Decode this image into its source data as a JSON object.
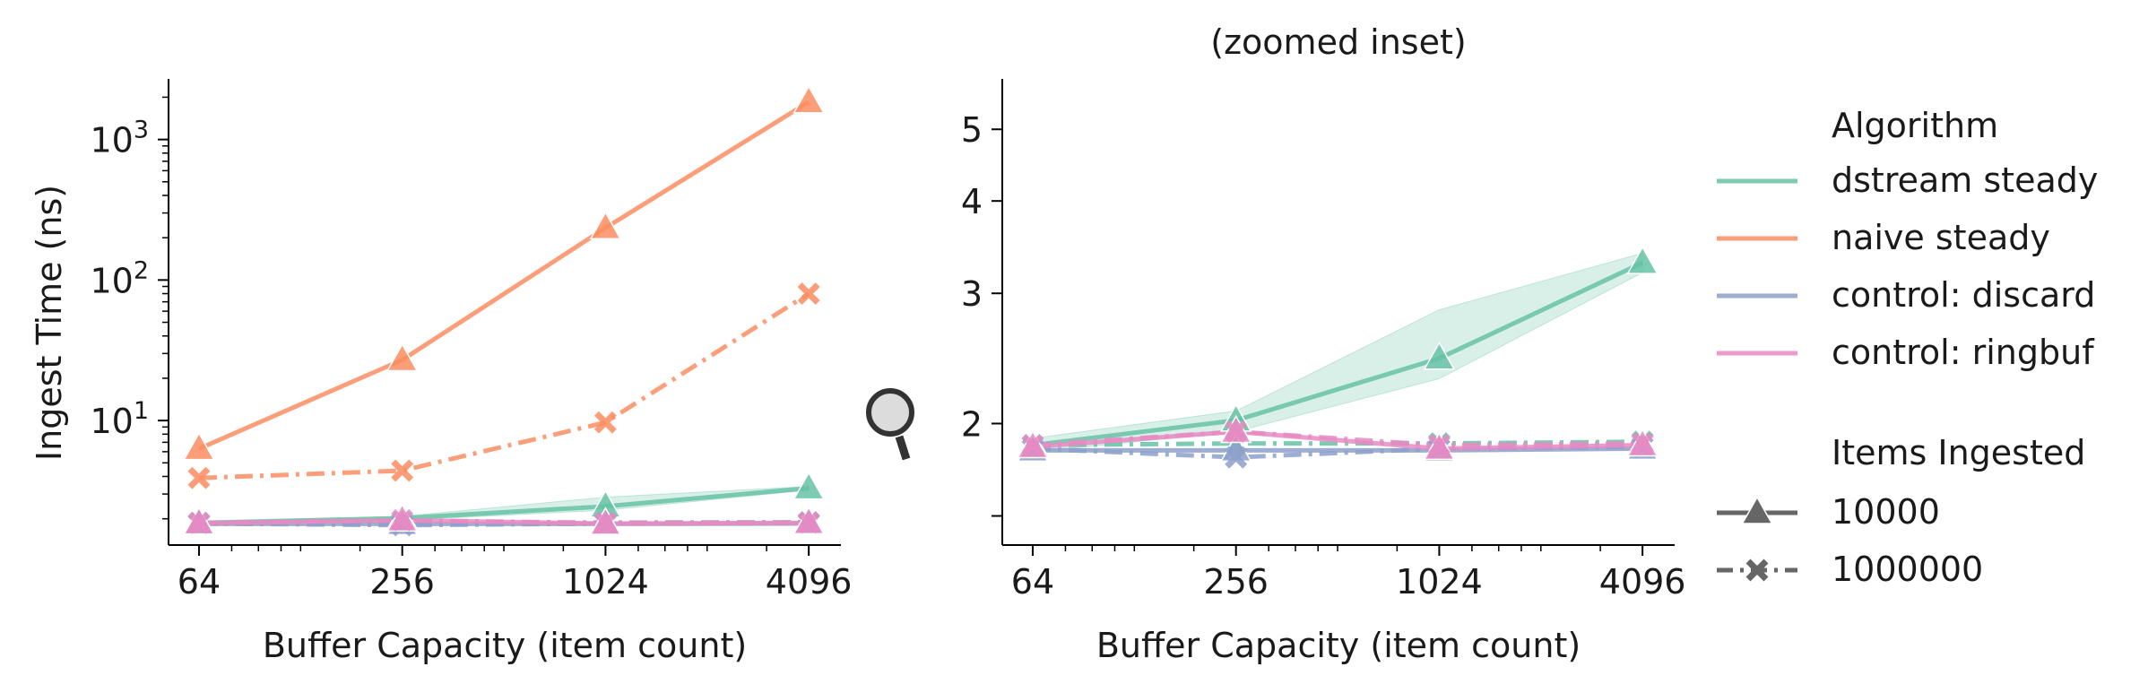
{
  "colors": {
    "dstream steady": "#66c2a5",
    "naive steady": "#fc8d62",
    "control: discard": "#8da0cb",
    "control: ringbuf": "#e78ac3",
    "axis": "#000000",
    "legend_marker": "#666666"
  },
  "icons": {
    "zoom": "magnifier-icon"
  },
  "legend": {
    "algorithm_title": "Algorithm",
    "algorithms": [
      "dstream steady",
      "naive steady",
      "control: discard",
      "control: ringbuf"
    ],
    "items_title": "Items Ingested",
    "items": [
      {
        "label": "10000",
        "marker": "triangle",
        "dash": "solid"
      },
      {
        "label": "1000000",
        "marker": "x",
        "dash": "dashed"
      }
    ]
  },
  "chart_data": [
    {
      "type": "line",
      "title": "",
      "xlabel": "Buffer Capacity (item count)",
      "ylabel": "Ingest Time (ns)",
      "xscale": "log2",
      "yscale": "log10",
      "x": [
        64,
        256,
        1024,
        4096
      ],
      "xticks": [
        "64",
        "256",
        "1024",
        "4096"
      ],
      "yticks": [
        {
          "value": 10,
          "base": "10",
          "exp": "1"
        },
        {
          "value": 100,
          "base": "10",
          "exp": "2"
        },
        {
          "value": 1000,
          "base": "10",
          "exp": "3"
        }
      ],
      "xlim": [
        52,
        5100
      ],
      "ylim": [
        1.3,
        2700
      ],
      "grid": false,
      "series": [
        {
          "name": "dstream steady",
          "items": "10000",
          "values": [
            1.87,
            2.02,
            2.45,
            3.3
          ],
          "band": [
            [
              1.83,
              1.91
            ],
            [
              1.95,
              2.08
            ],
            [
              2.3,
              2.85
            ],
            [
              3.2,
              3.4
            ]
          ]
        },
        {
          "name": "dstream steady",
          "items": "1000000",
          "values": [
            1.87,
            1.88,
            1.88,
            1.89
          ]
        },
        {
          "name": "naive steady",
          "items": "10000",
          "values": [
            6.3,
            27,
            235,
            1850
          ]
        },
        {
          "name": "naive steady",
          "items": "1000000",
          "values": [
            3.9,
            4.4,
            9.7,
            80
          ]
        },
        {
          "name": "control: discard",
          "items": "10000",
          "values": [
            1.84,
            1.84,
            1.84,
            1.85
          ]
        },
        {
          "name": "control: discard",
          "items": "1000000",
          "values": [
            1.85,
            1.8,
            1.85,
            1.86
          ]
        },
        {
          "name": "control: ringbuf",
          "items": "10000",
          "values": [
            1.86,
            1.95,
            1.85,
            1.87
          ]
        },
        {
          "name": "control: ringbuf",
          "items": "1000000",
          "values": [
            1.87,
            1.95,
            1.87,
            1.88
          ]
        }
      ]
    },
    {
      "type": "line",
      "title": "(zoomed inset)",
      "xlabel": "Buffer Capacity (item count)",
      "ylabel": "",
      "xscale": "log2",
      "yscale": "log",
      "x": [
        64,
        256,
        1024,
        4096
      ],
      "xticks": [
        "64",
        "256",
        "1024",
        "4096"
      ],
      "yticks": [
        {
          "value": 2,
          "label": "2"
        },
        {
          "value": 3,
          "label": "3"
        },
        {
          "value": 4,
          "label": "4"
        },
        {
          "value": 5,
          "label": "5"
        }
      ],
      "xlim": [
        52,
        5100
      ],
      "ylim": [
        1.37,
        5.85
      ],
      "grid": false,
      "series": [
        {
          "name": "dstream steady",
          "items": "10000",
          "values": [
            1.87,
            2.02,
            2.45,
            3.3
          ],
          "band": [
            [
              1.83,
              1.91
            ],
            [
              1.95,
              2.08
            ],
            [
              2.3,
              2.85
            ],
            [
              3.2,
              3.4
            ]
          ]
        },
        {
          "name": "dstream steady",
          "items": "1000000",
          "values": [
            1.87,
            1.88,
            1.88,
            1.89
          ]
        },
        {
          "name": "control: discard",
          "items": "10000",
          "values": [
            1.84,
            1.84,
            1.84,
            1.85
          ]
        },
        {
          "name": "control: discard",
          "items": "1000000",
          "values": [
            1.85,
            1.8,
            1.85,
            1.86
          ]
        },
        {
          "name": "control: ringbuf",
          "items": "10000",
          "values": [
            1.86,
            1.95,
            1.85,
            1.87
          ]
        },
        {
          "name": "control: ringbuf",
          "items": "1000000",
          "values": [
            1.87,
            1.95,
            1.87,
            1.88
          ]
        }
      ]
    }
  ]
}
